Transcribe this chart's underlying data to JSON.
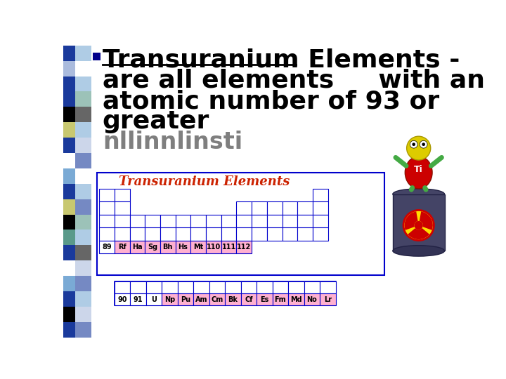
{
  "background_color": "#ffffff",
  "title_line1": "Transuranium Elements -",
  "title_line2": "are all elements     with an",
  "title_line3": "atomic number of 93 or",
  "title_line4": "greater",
  "title_color": "#000000",
  "bullet_color": "#00008B",
  "pt_label": "Transuranium Elements",
  "pt_label_color": "#cc2200",
  "pt_border_color": "#0000cc",
  "pt_bg_color": "#ffffff",
  "highlight_color": "#ffb0d0",
  "row1_label": "89",
  "row1_elements": [
    "Rf",
    "Ha",
    "Sg",
    "Bh",
    "Hs",
    "Mt",
    "110",
    "111",
    "112"
  ],
  "row2_label1": "90",
  "row2_label2": "91",
  "row2_elements": [
    "U",
    "Np",
    "Pu",
    "Am",
    "Cm",
    "Bk",
    "Cf",
    "Es",
    "Fm",
    "Md",
    "No",
    "Lr"
  ],
  "font_size_title": 26,
  "font_size_pt_label": 13,
  "font_size_elements": 7,
  "strip_colors_left": [
    "#1a3a9c",
    "#aabbdd",
    "#1a3a9c",
    "#1a3a9c",
    "#000000",
    "#c8c870",
    "#1a3a9c",
    "#ffffff",
    "#7aaad5",
    "#1a3a9c",
    "#c8c870",
    "#000000",
    "#5a9a8a",
    "#1a3a9c",
    "#ffffff",
    "#7aaad5",
    "#1a3a9c",
    "#000000",
    "#1a3a9c"
  ],
  "strip_colors_right": [
    "#7aaad5",
    "#ffffff",
    "#7aaad5",
    "#5a9a8a",
    "#000000",
    "#7aaad5",
    "#aabbdd",
    "#1a3a9c",
    "#ffffff",
    "#7aaad5",
    "#1a3a9c",
    "#5a9a8a",
    "#7aaad5",
    "#000000",
    "#aabbdd",
    "#1a3a9c",
    "#7aaad5",
    "#aabbdd",
    "#1a3a9c"
  ]
}
